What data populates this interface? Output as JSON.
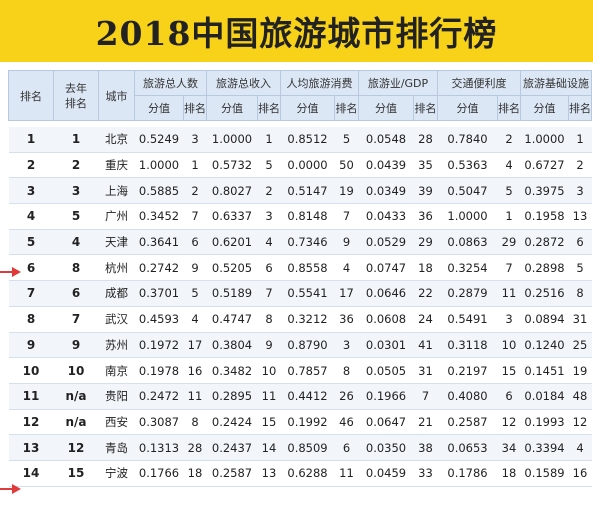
{
  "title": "2018中国旅游城市排行榜",
  "headers": {
    "rank": "排名",
    "prev_rank": "去年排名",
    "city": "城市",
    "groups": [
      "旅游总人数",
      "旅游总收入",
      "人均旅游消费",
      "旅游业/GDP",
      "交通便利度",
      "旅游基础设施"
    ],
    "score": "分值",
    "sub_rank": "排名"
  },
  "rows": [
    {
      "rank": "1",
      "prev": "1",
      "city": "北京",
      "v": [
        "0.5249",
        "3",
        "1.0000",
        "1",
        "0.8512",
        "5",
        "0.0548",
        "28",
        "0.7840",
        "2",
        "1.0000",
        "1"
      ]
    },
    {
      "rank": "2",
      "prev": "2",
      "city": "重庆",
      "v": [
        "1.0000",
        "1",
        "0.5732",
        "5",
        "0.0000",
        "50",
        "0.0439",
        "35",
        "0.5363",
        "4",
        "0.6727",
        "2"
      ]
    },
    {
      "rank": "3",
      "prev": "3",
      "city": "上海",
      "v": [
        "0.5885",
        "2",
        "0.8027",
        "2",
        "0.5147",
        "19",
        "0.0349",
        "39",
        "0.5047",
        "5",
        "0.3975",
        "3"
      ]
    },
    {
      "rank": "4",
      "prev": "5",
      "city": "广州",
      "v": [
        "0.3452",
        "7",
        "0.6337",
        "3",
        "0.8148",
        "7",
        "0.0433",
        "36",
        "1.0000",
        "1",
        "0.1958",
        "13"
      ]
    },
    {
      "rank": "5",
      "prev": "4",
      "city": "天津",
      "v": [
        "0.3641",
        "6",
        "0.6201",
        "4",
        "0.7346",
        "9",
        "0.0529",
        "29",
        "0.0863",
        "29",
        "0.2872",
        "6"
      ]
    },
    {
      "rank": "6",
      "prev": "8",
      "city": "杭州",
      "v": [
        "0.2742",
        "9",
        "0.5205",
        "6",
        "0.8558",
        "4",
        "0.0747",
        "18",
        "0.3254",
        "7",
        "0.2898",
        "5"
      ]
    },
    {
      "rank": "7",
      "prev": "6",
      "city": "成都",
      "v": [
        "0.3701",
        "5",
        "0.5189",
        "7",
        "0.5541",
        "17",
        "0.0646",
        "22",
        "0.2879",
        "11",
        "0.2516",
        "8"
      ]
    },
    {
      "rank": "8",
      "prev": "7",
      "city": "武汉",
      "v": [
        "0.4593",
        "4",
        "0.4747",
        "8",
        "0.3212",
        "36",
        "0.0608",
        "24",
        "0.5491",
        "3",
        "0.0894",
        "31"
      ]
    },
    {
      "rank": "9",
      "prev": "9",
      "city": "苏州",
      "v": [
        "0.1972",
        "17",
        "0.3804",
        "9",
        "0.8790",
        "3",
        "0.0301",
        "41",
        "0.3118",
        "10",
        "0.1240",
        "25"
      ]
    },
    {
      "rank": "10",
      "prev": "10",
      "city": "南京",
      "v": [
        "0.1978",
        "16",
        "0.3482",
        "10",
        "0.7857",
        "8",
        "0.0505",
        "31",
        "0.2197",
        "15",
        "0.1451",
        "19"
      ]
    },
    {
      "rank": "11",
      "prev": "n/a",
      "city": "贵阳",
      "v": [
        "0.2472",
        "11",
        "0.2895",
        "11",
        "0.4412",
        "26",
        "0.1966",
        "7",
        "0.4080",
        "6",
        "0.0184",
        "48"
      ]
    },
    {
      "rank": "12",
      "prev": "n/a",
      "city": "西安",
      "v": [
        "0.3087",
        "8",
        "0.2424",
        "15",
        "0.1992",
        "46",
        "0.0647",
        "21",
        "0.2587",
        "12",
        "0.1993",
        "12"
      ]
    },
    {
      "rank": "13",
      "prev": "12",
      "city": "青岛",
      "v": [
        "0.1313",
        "28",
        "0.2437",
        "14",
        "0.8509",
        "6",
        "0.0350",
        "38",
        "0.0653",
        "34",
        "0.3394",
        "4"
      ]
    },
    {
      "rank": "14",
      "prev": "15",
      "city": "宁波",
      "v": [
        "0.1766",
        "18",
        "0.2587",
        "13",
        "0.6288",
        "11",
        "0.0459",
        "33",
        "0.1786",
        "18",
        "0.1589",
        "16"
      ]
    }
  ]
}
